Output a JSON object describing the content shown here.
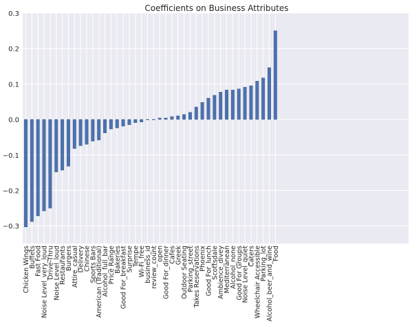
{
  "chart_data": {
    "type": "bar",
    "title": "Coefficients on Business Attributes",
    "xlabel": "",
    "ylabel": "",
    "ylim": [
      -0.35,
      0.3
    ],
    "yticks": [
      -0.3,
      -0.2,
      -0.1,
      0.0,
      0.1,
      0.2,
      0.3
    ],
    "ytick_labels": [
      "−0.3",
      "−0.2",
      "−0.1",
      "0.0",
      "0.1",
      "0.2",
      "0.3"
    ],
    "grid": true,
    "bar_color": "#4c72b0",
    "background_color": "#eaeaf2",
    "categories": [
      "Chicken Wings",
      "Buffets",
      "Fast Food",
      "Noise Level_very_loud",
      "Drive-Thru",
      "Noise Level_loud",
      "Restaurants",
      "Burgers",
      "Attire_casual",
      "Delivery",
      "Chinese",
      "Sports Bars",
      "American (Traditional)",
      "Alcohol_full_bar",
      "Price Range",
      "Bakeries",
      "Good For_breakfast",
      "Surprise",
      "Tempe",
      "Wi-Fi_free",
      "business_id",
      "review_count",
      "open",
      "Good For_dinner",
      "Cafes",
      "Greek",
      "Outdoor Seating",
      "Parking_street",
      "Takes Reservations",
      "Phoenix",
      "Good For_lunch",
      "Scottsdale",
      "Ambience_divey",
      "Mediterranean",
      "Alcohol_none",
      "Good For Groups",
      "Noise Level_quiet",
      "Caters",
      "Wheelchair Accessible",
      "Parking_lot",
      "Alcohol_beer_and_wine",
      "Food"
    ],
    "values": [
      -0.303,
      -0.288,
      -0.272,
      -0.258,
      -0.25,
      -0.148,
      -0.143,
      -0.132,
      -0.082,
      -0.074,
      -0.07,
      -0.061,
      -0.058,
      -0.038,
      -0.027,
      -0.024,
      -0.019,
      -0.015,
      -0.009,
      -0.007,
      -0.001,
      -0.001,
      0.004,
      0.004,
      0.008,
      0.01,
      0.014,
      0.02,
      0.035,
      0.048,
      0.06,
      0.068,
      0.077,
      0.083,
      0.083,
      0.086,
      0.091,
      0.095,
      0.108,
      0.117,
      0.146,
      0.25
    ]
  }
}
